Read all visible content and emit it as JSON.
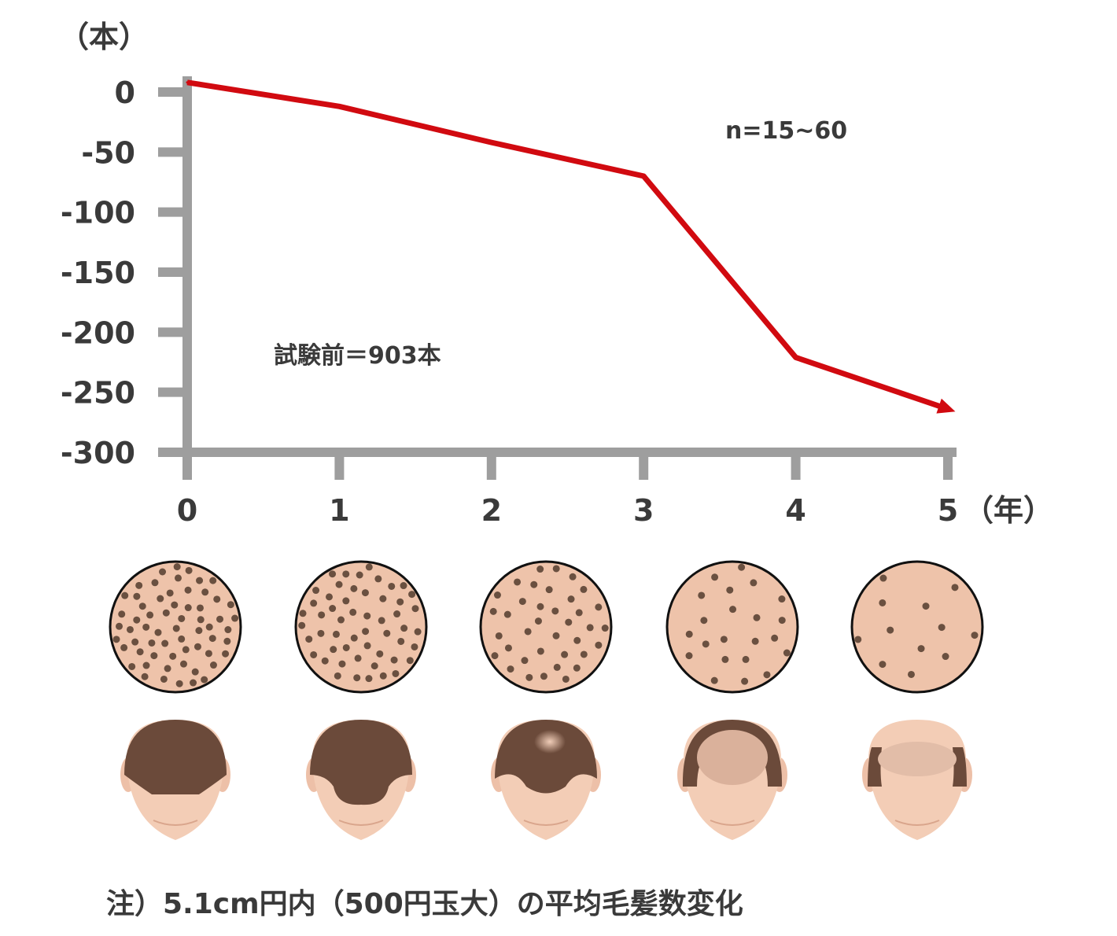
{
  "chart_data": {
    "type": "line",
    "y_unit_label": "（本）",
    "x_unit_label": "（年）",
    "x": [
      0,
      1,
      2,
      3,
      4,
      5
    ],
    "x_tick_labels": [
      "0",
      "1",
      "2",
      "3",
      "4",
      "5"
    ],
    "y_tick_values": [
      0,
      -50,
      -100,
      -150,
      -200,
      -250,
      -300
    ],
    "y_tick_labels": [
      "0",
      "-50",
      "-100",
      "-150",
      "-200",
      "-250",
      "-300"
    ],
    "ylim": [
      -300,
      0
    ],
    "xlim": [
      0,
      5
    ],
    "series": [
      {
        "values": [
          8,
          -12,
          -42,
          -70,
          -221,
          -264
        ],
        "color": "#d10a10"
      }
    ],
    "annotations": {
      "n_label": "n=15~60",
      "baseline_label": "試験前＝903本"
    },
    "axis_color": "#9e9e9e",
    "grid": false
  },
  "illustrations": {
    "scalp_dot_density": [
      1.0,
      0.85,
      0.6,
      0.35,
      0.2
    ],
    "skin_color": "#eec3aa",
    "hair_color": "#6b4a3a",
    "dot_color": "#6a5040"
  },
  "footnote": "注）5.1cm円内（500円玉大）の平均毛髪数変化"
}
